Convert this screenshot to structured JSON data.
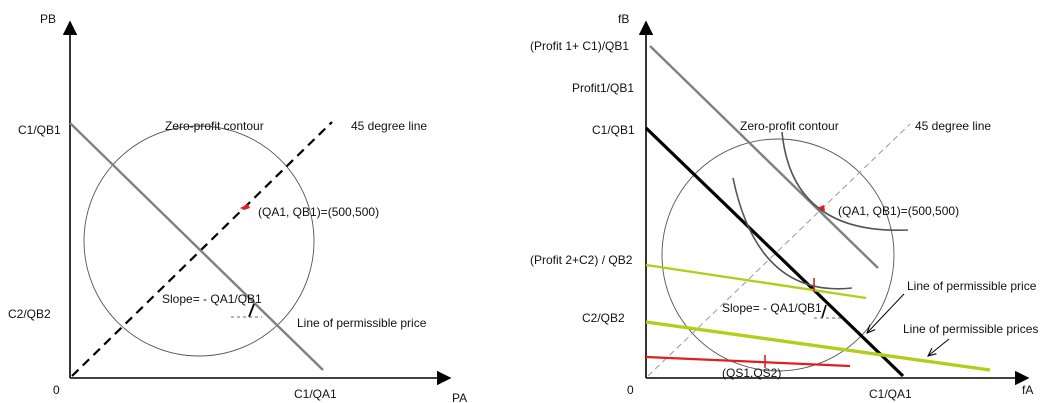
{
  "left_panel": {
    "y_axis_label": "PB",
    "x_axis_label": "PA",
    "origin_label": "0",
    "y_tick_c1": "C1/QB1",
    "y_tick_c2": "C2/QB2",
    "x_tick_c1": "C1/QA1",
    "contour_label": "Zero-profit contour",
    "line45_label": "45 degree line",
    "point_label": "(QA1, QB1)=(500,500)",
    "slope_label": "Slope= - QA1/QB1",
    "price_line_label": "Line of permissible price"
  },
  "right_panel": {
    "y_axis_label": "fB",
    "x_axis_label": "fA",
    "origin_label": "0",
    "y_tick_profit1_c1": "(Profit 1+ C1)/QB1",
    "y_tick_profit1": "Profit1/QB1",
    "y_tick_c1": "C1/QB1",
    "y_tick_profit2_c2": "(Profit 2+C2) / QB2",
    "y_tick_c2": "C2/QB2",
    "x_tick_c1": "C1/QA1",
    "contour_label": "Zero-profit contour",
    "line45_label": "45 degree line",
    "point_label": "(QA1, QB1)=(500,500)",
    "slope_label": "Slope= - QA1/QB1",
    "price_line_label": "Line of permissible price",
    "price_lines_label": "Line of permissible prices",
    "qs_label": "(QS1,QS2)"
  },
  "colors": {
    "axis": "#000000",
    "circle": "#555555",
    "gray_line": "#808080",
    "black_line": "#000000",
    "green_line": "#b5cc18",
    "red_line": "#e02020",
    "point": "#e02020"
  }
}
